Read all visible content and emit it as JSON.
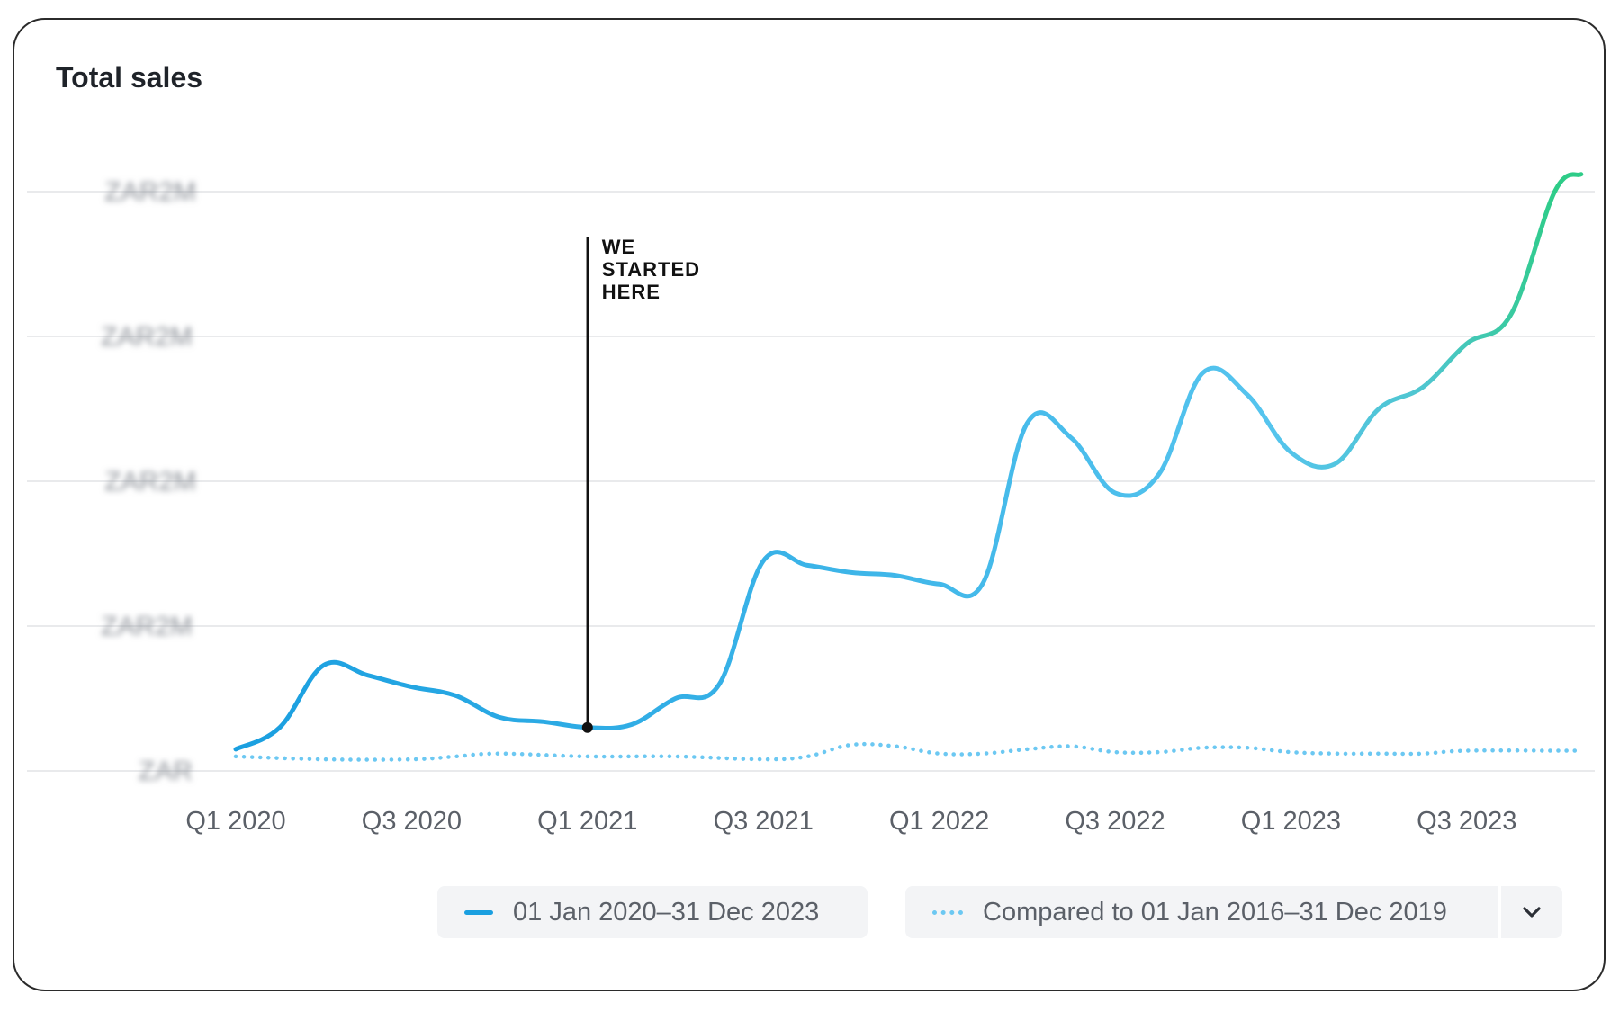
{
  "card": {
    "title": "Total sales"
  },
  "chart_data": {
    "type": "line",
    "title": "Total sales",
    "xlabel": "",
    "ylabel": "",
    "x_tick_labels": [
      "Q1 2020",
      "Q3 2020",
      "Q1 2021",
      "Q3 2021",
      "Q1 2022",
      "Q3 2022",
      "Q1 2023",
      "Q3 2023"
    ],
    "y_tick_labels": [
      "ZAR2M",
      "ZAR2M",
      "ZAR2M",
      "ZAR2M",
      "ZAR"
    ],
    "y_ticks_blurred": true,
    "ylim": [
      0,
      4
    ],
    "grid": true,
    "legend_position": "bottom-right",
    "series": [
      {
        "name": "01 Jan 2020–31 Dec 2023",
        "style": "solid",
        "color": "#1a9fe0",
        "end_color": "#2ecc88",
        "x": [
          0,
          0.5,
          1,
          1.5,
          2,
          2.5,
          3,
          3.5,
          4,
          4.5,
          5,
          5.5,
          6,
          6.5,
          7,
          7.5,
          8,
          8.5,
          9,
          9.5,
          10,
          10.5,
          11,
          11.5,
          12,
          12.5,
          13,
          13.5,
          14,
          14.5,
          15,
          15.3
        ],
        "values": [
          0.15,
          0.3,
          0.73,
          0.66,
          0.58,
          0.52,
          0.37,
          0.34,
          0.3,
          0.32,
          0.5,
          0.6,
          1.45,
          1.42,
          1.37,
          1.35,
          1.29,
          1.3,
          2.4,
          2.3,
          1.92,
          2.05,
          2.75,
          2.6,
          2.2,
          2.12,
          2.5,
          2.65,
          2.95,
          3.15,
          4.0,
          4.12
        ]
      },
      {
        "name": "Compared to 01 Jan 2016–31 Dec 2019",
        "style": "dotted",
        "color": "#6cc8f2",
        "x": [
          0,
          1,
          2,
          2.5,
          3,
          4,
          5,
          6,
          6.5,
          7,
          7.5,
          8,
          8.5,
          9,
          9.5,
          10,
          10.5,
          11,
          11.5,
          12,
          12.5,
          13,
          13.5,
          14,
          15,
          15.3
        ],
        "values": [
          0.1,
          0.08,
          0.08,
          0.1,
          0.12,
          0.1,
          0.1,
          0.08,
          0.1,
          0.18,
          0.17,
          0.12,
          0.12,
          0.15,
          0.17,
          0.13,
          0.13,
          0.16,
          0.16,
          0.13,
          0.12,
          0.12,
          0.12,
          0.14,
          0.14,
          0.14
        ]
      }
    ],
    "annotations": [
      {
        "x": 4,
        "text": [
          "WE",
          "STARTED",
          "HERE"
        ]
      }
    ]
  },
  "legend": {
    "primary_label": "01 Jan 2020–31 Dec 2023",
    "compare_label": "Compared to 01 Jan 2016–31 Dec 2019"
  }
}
